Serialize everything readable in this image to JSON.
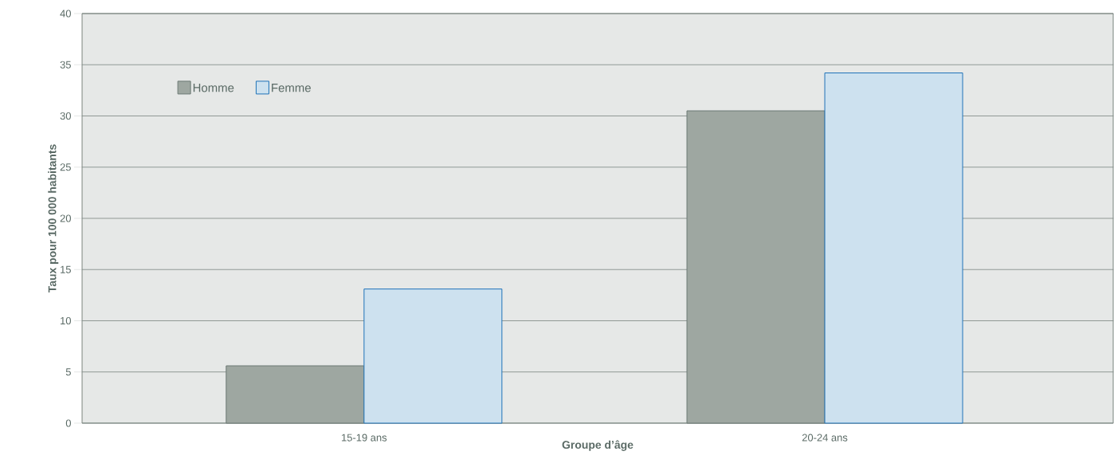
{
  "chart_data": {
    "type": "bar",
    "xlabel": "Groupe d’âge",
    "ylabel": "Taux pour 100 000 habitants",
    "categories": [
      "15-19 ans",
      "20-24 ans"
    ],
    "series": [
      {
        "name": "Homme",
        "color": "#9ea7a1",
        "values": [
          5.6,
          30.5
        ]
      },
      {
        "name": "Femme",
        "color": "#cde1ef",
        "values": [
          13.1,
          34.2
        ]
      }
    ],
    "ylim": [
      0,
      40
    ],
    "yticks": [
      0,
      5,
      10,
      15,
      20,
      25,
      30,
      35,
      40
    ],
    "grid": "y",
    "legend": "top left"
  }
}
